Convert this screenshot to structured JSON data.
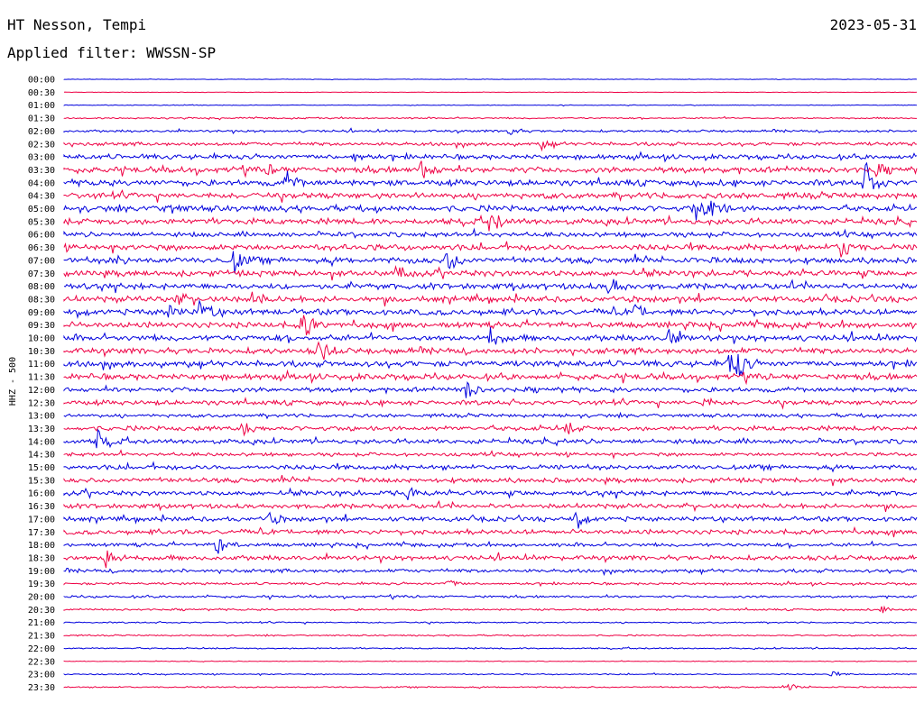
{
  "header": {
    "station": "HT Nesson, Tempi",
    "date": "2023-05-31",
    "filter": "Applied filter: WWSSN-SP"
  },
  "chart_data": {
    "type": "line",
    "title": "HT Nesson, Tempi",
    "ylabel": "HHZ - 500",
    "colors": [
      "#0000dd",
      "#ee0044"
    ],
    "rows": [
      "00:00",
      "00:30",
      "01:00",
      "01:30",
      "02:00",
      "02:30",
      "03:00",
      "03:30",
      "04:00",
      "04:30",
      "05:00",
      "05:30",
      "06:00",
      "06:30",
      "07:00",
      "07:30",
      "08:00",
      "08:30",
      "09:00",
      "09:30",
      "10:00",
      "10:30",
      "11:00",
      "11:30",
      "12:00",
      "12:30",
      "13:00",
      "13:30",
      "14:00",
      "14:30",
      "15:00",
      "15:30",
      "16:00",
      "16:30",
      "17:00",
      "17:30",
      "18:00",
      "18:30",
      "19:00",
      "19:30",
      "20:00",
      "20:30",
      "21:00",
      "21:30",
      "22:00",
      "22:30",
      "23:00",
      "23:30"
    ],
    "noise": [
      0.2,
      0.2,
      0.3,
      0.6,
      1.0,
      1.5,
      2.0,
      2.5,
      2.5,
      2.5,
      2.5,
      2.5,
      2.0,
      2.5,
      2.5,
      2.5,
      2.5,
      2.5,
      2.5,
      2.5,
      2.5,
      2.5,
      2.5,
      2.5,
      2.0,
      2.0,
      1.5,
      2.0,
      2.0,
      1.5,
      2.0,
      2.0,
      2.0,
      2.0,
      2.0,
      2.0,
      1.5,
      2.0,
      1.5,
      1.0,
      1.0,
      0.8,
      0.6,
      0.6,
      0.6,
      0.3,
      0.5,
      0.6
    ],
    "events": [
      {
        "row": 4,
        "x": 0.52,
        "amp": 6
      },
      {
        "row": 5,
        "x": 0.56,
        "amp": 5
      },
      {
        "row": 6,
        "x": 0.34,
        "amp": 5
      },
      {
        "row": 7,
        "x": 0.42,
        "amp": 12
      },
      {
        "row": 7,
        "x": 0.24,
        "amp": 6
      },
      {
        "row": 7,
        "x": 0.95,
        "amp": 8
      },
      {
        "row": 8,
        "x": 0.26,
        "amp": 12
      },
      {
        "row": 8,
        "x": 0.94,
        "amp": 25
      },
      {
        "row": 10,
        "x": 0.12,
        "amp": 8
      },
      {
        "row": 10,
        "x": 0.74,
        "amp": 14
      },
      {
        "row": 10,
        "x": 0.76,
        "amp": 14
      },
      {
        "row": 11,
        "x": 0.5,
        "amp": 16
      },
      {
        "row": 13,
        "x": 0.91,
        "amp": 16
      },
      {
        "row": 14,
        "x": 0.2,
        "amp": 13
      },
      {
        "row": 14,
        "x": 0.45,
        "amp": 15
      },
      {
        "row": 14,
        "x": 0.06,
        "amp": 6
      },
      {
        "row": 15,
        "x": 0.39,
        "amp": 8
      },
      {
        "row": 16,
        "x": 0.64,
        "amp": 12
      },
      {
        "row": 17,
        "x": 0.13,
        "amp": 10
      },
      {
        "row": 17,
        "x": 0.22,
        "amp": 10
      },
      {
        "row": 18,
        "x": 0.12,
        "amp": 10
      },
      {
        "row": 18,
        "x": 0.16,
        "amp": 16
      },
      {
        "row": 18,
        "x": 0.67,
        "amp": 8
      },
      {
        "row": 19,
        "x": 0.28,
        "amp": 16
      },
      {
        "row": 20,
        "x": 0.5,
        "amp": 10
      },
      {
        "row": 20,
        "x": 0.71,
        "amp": 10
      },
      {
        "row": 21,
        "x": 0.3,
        "amp": 14
      },
      {
        "row": 22,
        "x": 0.78,
        "amp": 14
      },
      {
        "row": 22,
        "x": 0.79,
        "amp": 14
      },
      {
        "row": 24,
        "x": 0.47,
        "amp": 12
      },
      {
        "row": 25,
        "x": 0.75,
        "amp": 6
      },
      {
        "row": 27,
        "x": 0.21,
        "amp": 8
      },
      {
        "row": 27,
        "x": 0.59,
        "amp": 6
      },
      {
        "row": 28,
        "x": 0.04,
        "amp": 13
      },
      {
        "row": 32,
        "x": 0.4,
        "amp": 12
      },
      {
        "row": 34,
        "x": 0.24,
        "amp": 8
      },
      {
        "row": 34,
        "x": 0.6,
        "amp": 9
      },
      {
        "row": 36,
        "x": 0.18,
        "amp": 14
      },
      {
        "row": 37,
        "x": 0.05,
        "amp": 14
      },
      {
        "row": 39,
        "x": 0.45,
        "amp": 5
      },
      {
        "row": 41,
        "x": 0.96,
        "amp": 4
      },
      {
        "row": 46,
        "x": 0.9,
        "amp": 3
      },
      {
        "row": 47,
        "x": 0.85,
        "amp": 4
      }
    ]
  }
}
